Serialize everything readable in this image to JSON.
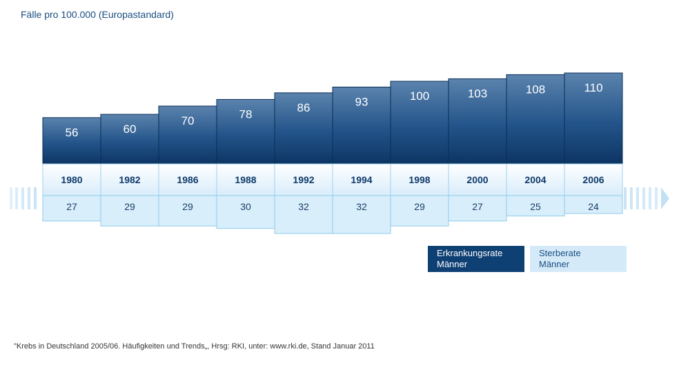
{
  "subtitle": "Fälle pro 100.000 (Europastandard)",
  "legend": {
    "incidence": "Erkrankungsrate\nMänner",
    "mortality": "Sterberate\nMänner"
  },
  "footnote": "\"Krebs in Deutschland 2005/06. Häufigkeiten und Trends„, Hrsg: RKI, unter: www.rki.de, Stand Januar 2011",
  "colors": {
    "incidence": "#0f4074",
    "mortality": "#d4eaf8",
    "band": "#e8f4fc"
  },
  "chart_data": {
    "type": "bar",
    "categories": [
      "1980",
      "1982",
      "1986",
      "1988",
      "1992",
      "1994",
      "1998",
      "2000",
      "2004",
      "2006"
    ],
    "series": [
      {
        "name": "Erkrankungsrate Männer",
        "values": [
          56,
          60,
          70,
          78,
          86,
          93,
          100,
          103,
          108,
          110
        ]
      },
      {
        "name": "Sterberate Männer",
        "values": [
          27,
          29,
          29,
          30,
          32,
          32,
          29,
          27,
          25,
          24
        ]
      }
    ],
    "ylabel": "Fälle pro 100.000 (Europastandard)",
    "grid": false,
    "legend_position": "bottom-right"
  }
}
